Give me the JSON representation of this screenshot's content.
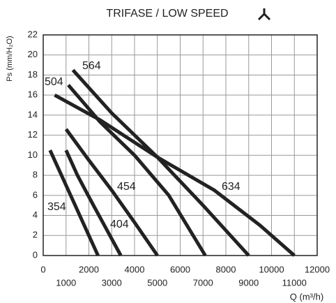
{
  "chart_data": {
    "type": "line",
    "title": "TRIFASE / LOW SPEED",
    "x_label": "Q (m³/h)",
    "y_label": "Ps (mm/H₂O)",
    "xlim": [
      0,
      12000
    ],
    "ylim": [
      0,
      22
    ],
    "xticks": [
      0,
      1000,
      2000,
      3000,
      4000,
      5000,
      6000,
      7000,
      8000,
      9000,
      10000,
      11000,
      12000
    ],
    "yticks": [
      0,
      2,
      4,
      6,
      8,
      10,
      12,
      14,
      16,
      18,
      20,
      22
    ],
    "grid": true,
    "series": [
      {
        "name": "354",
        "color": "#222222",
        "x": [
          300,
          800,
          1300,
          1800,
          2400
        ],
        "values": [
          10.5,
          8,
          5.5,
          3,
          0
        ]
      },
      {
        "name": "404",
        "color": "#222222",
        "x": [
          1000,
          1500,
          2200,
          2800,
          3400
        ],
        "values": [
          10.5,
          8,
          5,
          2.5,
          0
        ]
      },
      {
        "name": "454",
        "color": "#222222",
        "x": [
          1000,
          2000,
          3000,
          4000,
          5000
        ],
        "values": [
          12.6,
          9.5,
          6.5,
          3.3,
          0
        ]
      },
      {
        "name": "504",
        "color": "#222222",
        "x": [
          1100,
          2500,
          4000,
          5500,
          7100
        ],
        "values": [
          17,
          13.3,
          10,
          6,
          0
        ]
      },
      {
        "name": "564",
        "color": "#222222",
        "x": [
          1300,
          3000,
          5000,
          7000,
          9000
        ],
        "values": [
          18.5,
          14.2,
          9.8,
          5,
          0
        ]
      },
      {
        "name": "634",
        "color": "#222222",
        "x": [
          500,
          2500,
          5000,
          7500,
          9500,
          11000
        ],
        "values": [
          16,
          13.5,
          9.8,
          6.5,
          3,
          0
        ]
      }
    ]
  }
}
